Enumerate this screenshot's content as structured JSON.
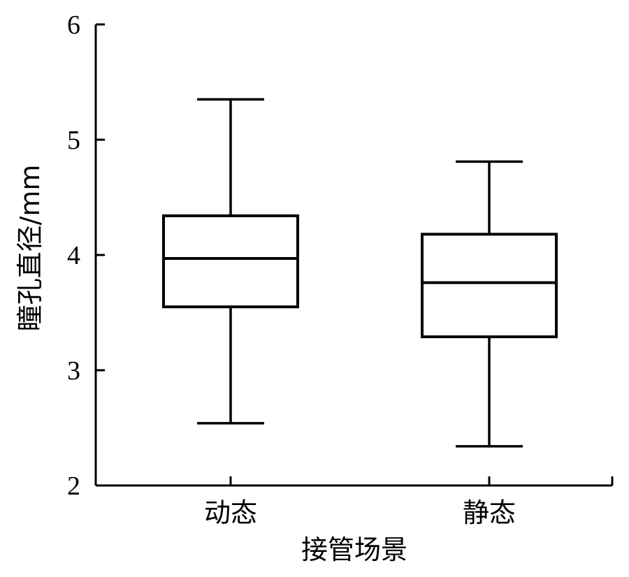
{
  "chart_data": {
    "type": "boxplot",
    "title": "",
    "xlabel": "接管场景",
    "ylabel": "瞳孔直径/mm",
    "ylim": [
      2,
      6
    ],
    "yticks": [
      2,
      3,
      4,
      5,
      6
    ],
    "grid": false,
    "categories": [
      "动态",
      "静态"
    ],
    "boxes": [
      {
        "category": "动态",
        "whisker_low": 2.54,
        "q1": 3.55,
        "median": 3.97,
        "q3": 4.34,
        "whisker_high": 5.35
      },
      {
        "category": "静态",
        "whisker_low": 2.34,
        "q1": 3.29,
        "median": 3.76,
        "q3": 4.18,
        "whisker_high": 4.81
      }
    ],
    "colors": {
      "stroke": "#000000",
      "fill": "#ffffff"
    }
  }
}
